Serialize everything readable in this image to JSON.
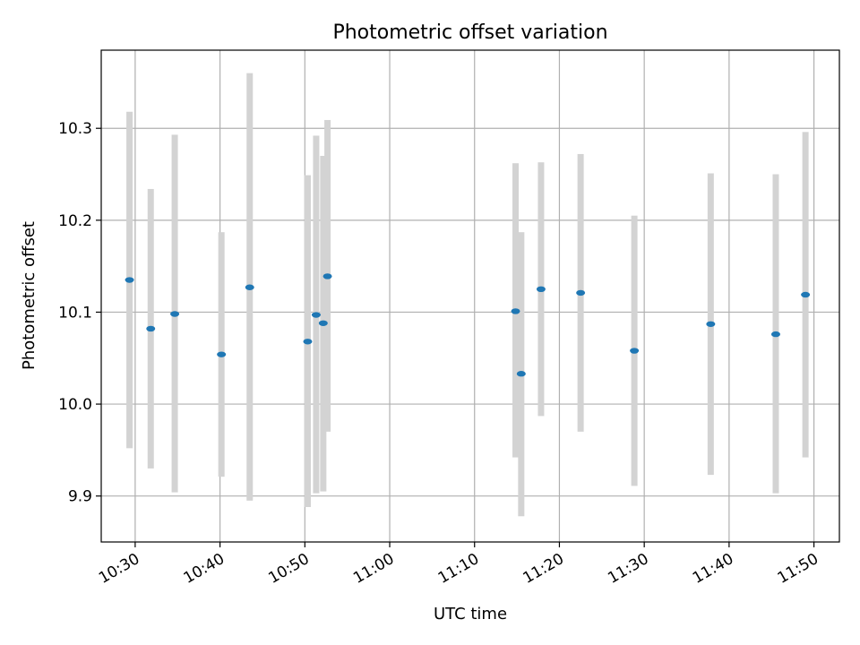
{
  "chart_data": {
    "type": "scatter",
    "title": "Photometric offset variation",
    "xlabel": "UTC time",
    "ylabel": "Photometric offset",
    "x_ticks": [
      "10:30",
      "10:40",
      "10:50",
      "11:00",
      "11:10",
      "11:20",
      "11:30",
      "11:40",
      "11:50"
    ],
    "y_ticks": [
      "9.9",
      "10.0",
      "10.1",
      "10.2",
      "10.3"
    ],
    "ylim": [
      9.85,
      10.385
    ],
    "xlim": [
      "10:26:00",
      "10:53:00"
    ],
    "grid": true,
    "colors": {
      "point": "#1f77b4",
      "errorbar": "#d3d3d3",
      "grid": "#b0b0b0"
    },
    "points": [
      {
        "t": "10:29:20",
        "y": 10.135,
        "ylo": 9.952,
        "yhi": 10.318
      },
      {
        "t": "10:31:50",
        "y": 10.082,
        "ylo": 9.93,
        "yhi": 10.234
      },
      {
        "t": "10:34:40",
        "y": 10.098,
        "ylo": 9.904,
        "yhi": 10.293
      },
      {
        "t": "10:40:10",
        "y": 10.054,
        "ylo": 9.921,
        "yhi": 10.187
      },
      {
        "t": "10:43:30",
        "y": 10.127,
        "ylo": 9.895,
        "yhi": 10.36
      },
      {
        "t": "10:50:20",
        "y": 10.068,
        "ylo": 9.888,
        "yhi": 10.249
      },
      {
        "t": "10:51:20",
        "y": 10.097,
        "ylo": 9.903,
        "yhi": 10.292
      },
      {
        "t": "10:52:10",
        "y": 10.088,
        "ylo": 9.905,
        "yhi": 10.27
      },
      {
        "t": "10:52:40",
        "y": 10.139,
        "ylo": 9.97,
        "yhi": 10.309
      },
      {
        "t": "11:14:50",
        "y": 10.101,
        "ylo": 9.942,
        "yhi": 10.262
      },
      {
        "t": "11:15:30",
        "y": 10.033,
        "ylo": 9.878,
        "yhi": 10.187
      },
      {
        "t": "11:17:50",
        "y": 10.125,
        "ylo": 9.987,
        "yhi": 10.263
      },
      {
        "t": "11:22:30",
        "y": 10.121,
        "ylo": 9.97,
        "yhi": 10.272
      },
      {
        "t": "11:28:50",
        "y": 10.058,
        "ylo": 9.911,
        "yhi": 10.205
      },
      {
        "t": "11:37:50",
        "y": 10.087,
        "ylo": 9.923,
        "yhi": 10.251
      },
      {
        "t": "11:45:30",
        "y": 10.076,
        "ylo": 9.903,
        "yhi": 10.25
      },
      {
        "t": "11:49:00",
        "y": 10.119,
        "ylo": 9.942,
        "yhi": 10.296
      }
    ]
  }
}
